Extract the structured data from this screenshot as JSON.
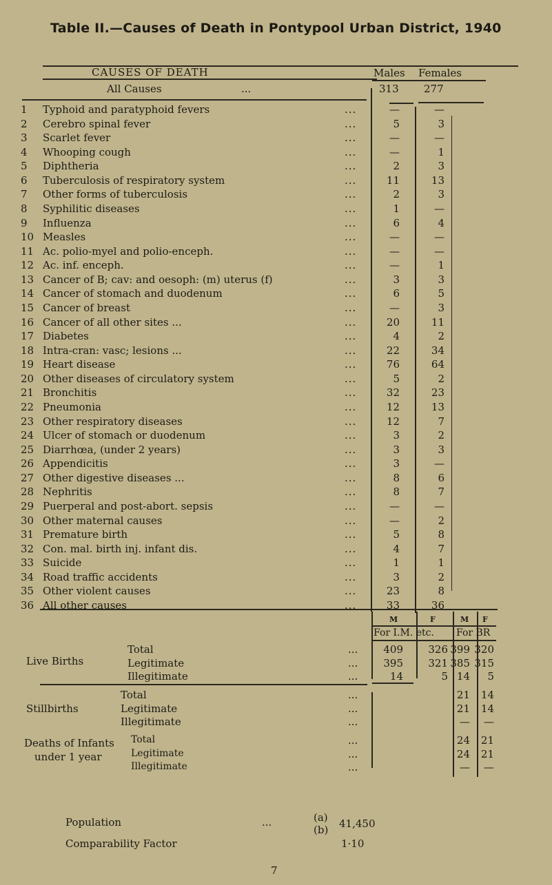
{
  "title": "Table II.—Causes of Death in Pontypool Urban District, 1940",
  "header": {
    "causes": "CAUSES OF DEATH",
    "males": "Males",
    "females": "Females",
    "all_causes": "All Causes",
    "dots": "...",
    "all_males": "313",
    "all_females": "277"
  },
  "causes": [
    {
      "n": "1",
      "label": "Typhoid and paratyphoid fevers",
      "m": "—",
      "f": "—"
    },
    {
      "n": "2",
      "label": "Cerebro spinal fever",
      "m": "5",
      "f": "3"
    },
    {
      "n": "3",
      "label": "Scarlet fever",
      "m": "—",
      "f": "—"
    },
    {
      "n": "4",
      "label": "Whooping cough",
      "m": "—",
      "f": "1"
    },
    {
      "n": "5",
      "label": "Diphtheria",
      "m": "2",
      "f": "3"
    },
    {
      "n": "6",
      "label": "Tuberculosis of respiratory system",
      "m": "11",
      "f": "13"
    },
    {
      "n": "7",
      "label": "Other forms of tuberculosis",
      "m": "2",
      "f": "3"
    },
    {
      "n": "8",
      "label": "Syphilitic diseases",
      "m": "1",
      "f": "—"
    },
    {
      "n": "9",
      "label": "Influenza",
      "m": "6",
      "f": "4"
    },
    {
      "n": "10",
      "label": "Measles",
      "m": "—",
      "f": "—"
    },
    {
      "n": "11",
      "label": "Ac. polio-myel and polio-enceph.",
      "m": "—",
      "f": "—"
    },
    {
      "n": "12",
      "label": "Ac. inf. enceph.",
      "m": "—",
      "f": "1"
    },
    {
      "n": "13",
      "label": "Cancer of B; cav: and oesoph: (m) uterus (f)",
      "m": "3",
      "f": "3"
    },
    {
      "n": "14",
      "label": "Cancer of stomach and duodenum",
      "m": "6",
      "f": "5"
    },
    {
      "n": "15",
      "label": "Cancer of breast",
      "m": "—",
      "f": "3"
    },
    {
      "n": "16",
      "label": "Cancer of all other sites ...",
      "m": "20",
      "f": "11"
    },
    {
      "n": "17",
      "label": "Diabetes",
      "m": "4",
      "f": "2"
    },
    {
      "n": "18",
      "label": "Intra-cran: vasc; lesions ...",
      "m": "22",
      "f": "34"
    },
    {
      "n": "19",
      "label": "Heart disease",
      "m": "76",
      "f": "64"
    },
    {
      "n": "20",
      "label": "Other diseases of circulatory system",
      "m": "5",
      "f": "2"
    },
    {
      "n": "21",
      "label": "Bronchitis",
      "m": "32",
      "f": "23"
    },
    {
      "n": "22",
      "label": "Pneumonia",
      "m": "12",
      "f": "13"
    },
    {
      "n": "23",
      "label": "Other respiratory diseases",
      "m": "12",
      "f": "7"
    },
    {
      "n": "24",
      "label": "Ulcer of stomach or duodenum",
      "m": "3",
      "f": "2"
    },
    {
      "n": "25",
      "label": "Diarrhœa, (under 2 years)",
      "m": "3",
      "f": "3"
    },
    {
      "n": "26",
      "label": "Appendicitis",
      "m": "3",
      "f": "—"
    },
    {
      "n": "27",
      "label": "Other digestive diseases ...",
      "m": "8",
      "f": "6"
    },
    {
      "n": "28",
      "label": "Nephritis",
      "m": "8",
      "f": "7"
    },
    {
      "n": "29",
      "label": "Puerperal and post-abort. sepsis",
      "m": "—",
      "f": "—"
    },
    {
      "n": "30",
      "label": "Other maternal causes",
      "m": "—",
      "f": "2"
    },
    {
      "n": "31",
      "label": "Premature birth",
      "m": "5",
      "f": "8"
    },
    {
      "n": "32",
      "label": "Con. mal. birth inj. infant dis.",
      "m": "4",
      "f": "7"
    },
    {
      "n": "33",
      "label": "Suicide",
      "m": "1",
      "f": "1"
    },
    {
      "n": "34",
      "label": "Road traffic accidents",
      "m": "3",
      "f": "2"
    },
    {
      "n": "35",
      "label": "Other violent causes",
      "m": "23",
      "f": "8"
    },
    {
      "n": "36",
      "label": "All other causes",
      "m": "33",
      "f": "36"
    }
  ],
  "births": {
    "m": "M",
    "f": "F",
    "for_im": "For I.M. etc.",
    "for_br": "For BR",
    "live_births": "Live Births",
    "stillbirths": "Stillbirths",
    "infant_deaths_1": "Deaths of Infants",
    "infant_deaths_2": "under 1 year",
    "total": "Total",
    "legitimate": "Legitimate",
    "illegitimate": "Illegitimate",
    "live": {
      "total": [
        "409",
        "326",
        "399",
        "320"
      ],
      "legit": [
        "395",
        "321",
        "385",
        "315"
      ],
      "illegit": [
        "14",
        "5",
        "14",
        "5"
      ]
    },
    "still": {
      "total": [
        "21",
        "14"
      ],
      "legit": [
        "21",
        "14"
      ],
      "illegit": [
        "—",
        "—"
      ]
    },
    "infant": {
      "total": [
        "24",
        "21"
      ],
      "legit": [
        "24",
        "21"
      ],
      "illegit": [
        "—",
        "—"
      ]
    }
  },
  "footer": {
    "population": "Population",
    "comparability": "Comparability Factor",
    "ab": "(a)\n(b)",
    "population_value": "41,450",
    "factor_value": "1·10",
    "page": "7"
  }
}
